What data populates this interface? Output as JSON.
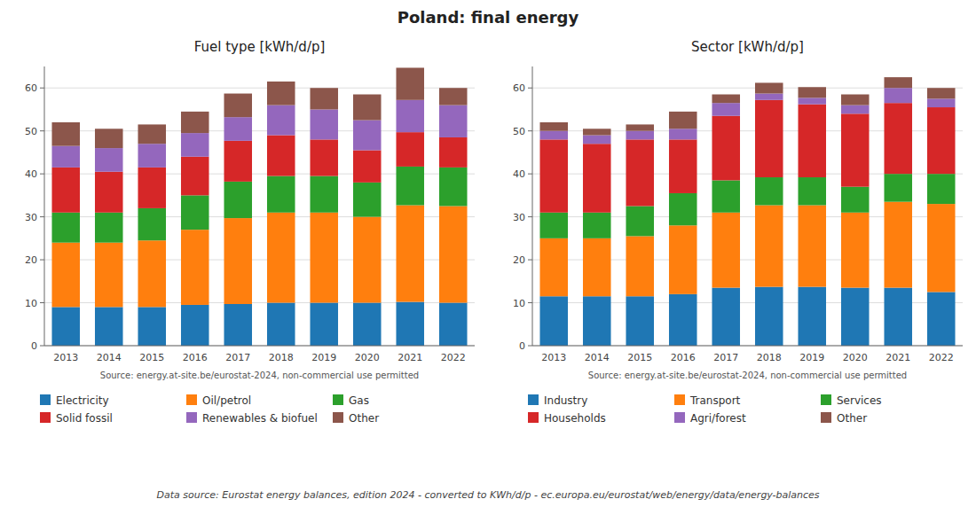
{
  "title": "Poland: final energy",
  "annotations": [
    "Data source: Eurostat energy balances, edition 2024 - converted to KWh/d/p - ec.europa.eu/eurostat/web/energy/data/energy-balances"
  ],
  "chart_data": [
    {
      "type": "bar",
      "stacked": true,
      "title": "Fuel type [kWh/d/p]",
      "categories": [
        "2013",
        "2014",
        "2015",
        "2016",
        "2017",
        "2018",
        "2019",
        "2020",
        "2021",
        "2022"
      ],
      "series": [
        {
          "name": "Electricity",
          "color": "#1f77b4",
          "values": [
            9.0,
            9.0,
            9.0,
            9.5,
            9.7,
            10.0,
            10.0,
            10.0,
            10.2,
            10.0
          ]
        },
        {
          "name": "Oil/petrol",
          "color": "#ff7f0e",
          "values": [
            15.0,
            15.0,
            15.5,
            17.5,
            20.0,
            21.0,
            21.0,
            20.0,
            22.5,
            22.5
          ]
        },
        {
          "name": "Gas",
          "color": "#2ca02c",
          "values": [
            7.0,
            7.0,
            7.5,
            8.0,
            8.5,
            8.5,
            8.5,
            8.0,
            9.0,
            9.0
          ]
        },
        {
          "name": "Solid fossil",
          "color": "#d62728",
          "values": [
            10.5,
            9.5,
            9.5,
            9.0,
            9.5,
            9.5,
            8.5,
            7.5,
            8.0,
            7.0
          ]
        },
        {
          "name": "Renewables & biofuel",
          "color": "#9467bd",
          "values": [
            5.0,
            5.5,
            5.5,
            5.5,
            5.5,
            7.0,
            7.0,
            7.0,
            7.5,
            7.5
          ]
        },
        {
          "name": "Other",
          "color": "#8c564b",
          "values": [
            5.5,
            4.5,
            4.5,
            5.0,
            5.5,
            5.5,
            5.0,
            6.0,
            7.5,
            4.0
          ]
        }
      ],
      "ylim": [
        0,
        65
      ],
      "yticks": [
        0,
        10,
        20,
        30,
        40,
        50,
        60
      ],
      "grid": true,
      "legend": "bottom",
      "annotations": [
        "Source: energy.at-site.be/eurostat-2024, non-commercial use permitted"
      ]
    },
    {
      "type": "bar",
      "stacked": true,
      "title": "Sector [kWh/d/p]",
      "categories": [
        "2013",
        "2014",
        "2015",
        "2016",
        "2017",
        "2018",
        "2019",
        "2020",
        "2021",
        "2022"
      ],
      "series": [
        {
          "name": "Industry",
          "color": "#1f77b4",
          "values": [
            11.5,
            11.5,
            11.5,
            12.0,
            13.5,
            13.7,
            13.7,
            13.5,
            13.5,
            12.5
          ]
        },
        {
          "name": "Transport",
          "color": "#ff7f0e",
          "values": [
            13.5,
            13.5,
            14.0,
            16.0,
            17.5,
            19.0,
            19.0,
            17.5,
            20.0,
            20.5
          ]
        },
        {
          "name": "Services",
          "color": "#2ca02c",
          "values": [
            6.0,
            6.0,
            7.0,
            7.5,
            7.5,
            6.5,
            6.5,
            6.0,
            6.5,
            7.0
          ]
        },
        {
          "name": "Households",
          "color": "#d62728",
          "values": [
            17.0,
            16.0,
            15.5,
            12.5,
            15.0,
            18.0,
            17.0,
            17.0,
            16.5,
            15.5
          ]
        },
        {
          "name": "Agri/forest",
          "color": "#9467bd",
          "values": [
            2.0,
            2.0,
            2.0,
            2.5,
            3.0,
            1.5,
            1.5,
            2.0,
            3.5,
            2.0
          ]
        },
        {
          "name": "Other",
          "color": "#8c564b",
          "values": [
            2.0,
            1.5,
            1.5,
            4.0,
            2.0,
            2.5,
            2.5,
            2.5,
            2.5,
            2.5
          ]
        }
      ],
      "ylim": [
        0,
        65
      ],
      "yticks": [
        0,
        10,
        20,
        30,
        40,
        50,
        60
      ],
      "grid": true,
      "legend": "bottom",
      "annotations": [
        "Source: energy.at-site.be/eurostat-2024, non-commercial use permitted"
      ]
    }
  ]
}
